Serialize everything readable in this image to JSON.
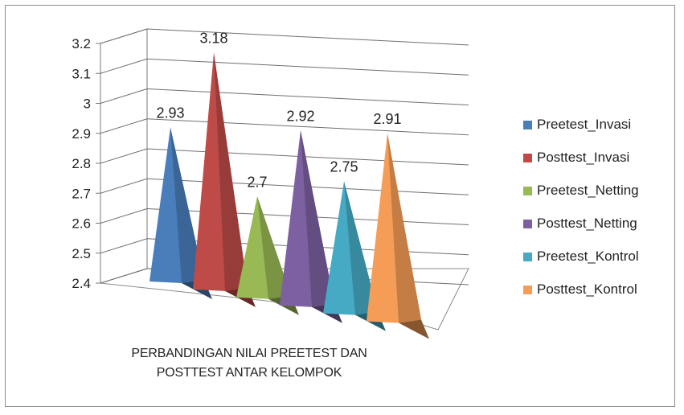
{
  "chart_data": {
    "type": "bar",
    "style": "3d-pyramid",
    "categories": [
      "Preetest_Invasi",
      "Posttest_Invasi",
      "Preetest_Netting",
      "Posttest_Netting",
      "Preetest_Kontrol",
      "Posttest_Kontrol"
    ],
    "values": [
      2.93,
      3.18,
      2.7,
      2.92,
      2.75,
      2.91
    ],
    "value_labels": [
      "2.93",
      "3.18",
      "2.7",
      "2.92",
      "2.75",
      "2.91"
    ],
    "colors": [
      "#4a7ebb",
      "#be4b48",
      "#98b954",
      "#7d60a0",
      "#46aac5",
      "#f59d56"
    ],
    "ylim": [
      2.4,
      3.2
    ],
    "yticks": [
      "3.2",
      "3.1",
      "3",
      "2.9",
      "2.8",
      "2.7",
      "2.6",
      "2.5",
      "2.4"
    ],
    "grid": true,
    "legend_position": "right",
    "caption_lines": [
      "PERBANDINGAN NILAI PREETEST DAN",
      "POSTTEST ANTAR KELOMPOK"
    ]
  }
}
